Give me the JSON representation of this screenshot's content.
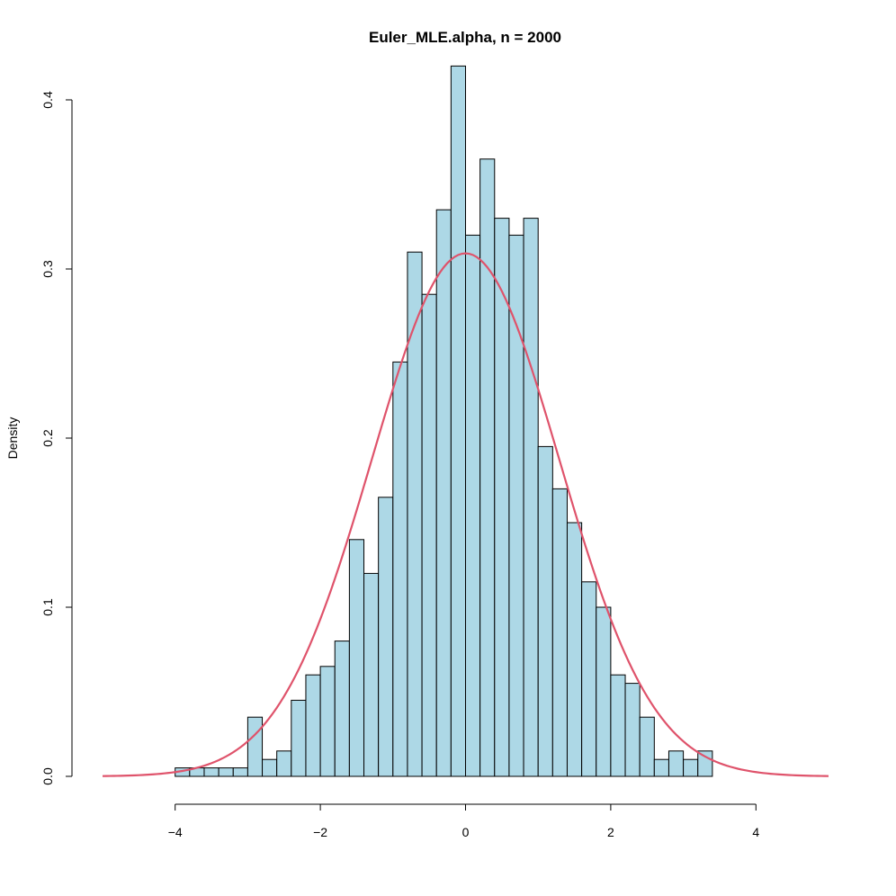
{
  "chart_data": {
    "type": "bar",
    "title": "Euler_MLE.alpha, n = 2000",
    "xlabel": "",
    "ylabel": "Density",
    "xlim": [
      -5,
      5
    ],
    "ylim": [
      0,
      0.4
    ],
    "x_ticks": [
      -4,
      -2,
      0,
      2,
      4
    ],
    "x_tick_labels": [
      "−4",
      "−2",
      "0",
      "2",
      "4"
    ],
    "y_ticks": [
      0.0,
      0.1,
      0.2,
      0.3,
      0.4
    ],
    "y_tick_labels": [
      "0.0",
      "0.1",
      "0.2",
      "0.3",
      "0.4"
    ],
    "grid": false,
    "bar_fill": "#add8e6",
    "bar_stroke": "#000000",
    "curve_color": "#df536b",
    "bin_width": 0.2,
    "bins": [
      {
        "x0": -4.0,
        "x1": -3.8,
        "density": 0.005
      },
      {
        "x0": -3.8,
        "x1": -3.6,
        "density": 0.005
      },
      {
        "x0": -3.6,
        "x1": -3.4,
        "density": 0.005
      },
      {
        "x0": -3.4,
        "x1": -3.2,
        "density": 0.005
      },
      {
        "x0": -3.2,
        "x1": -3.0,
        "density": 0.005
      },
      {
        "x0": -3.0,
        "x1": -2.8,
        "density": 0.035
      },
      {
        "x0": -2.8,
        "x1": -2.6,
        "density": 0.01
      },
      {
        "x0": -2.6,
        "x1": -2.4,
        "density": 0.015
      },
      {
        "x0": -2.4,
        "x1": -2.2,
        "density": 0.045
      },
      {
        "x0": -2.2,
        "x1": -2.0,
        "density": 0.06
      },
      {
        "x0": -2.0,
        "x1": -1.8,
        "density": 0.065
      },
      {
        "x0": -1.8,
        "x1": -1.6,
        "density": 0.08
      },
      {
        "x0": -1.6,
        "x1": -1.4,
        "density": 0.14
      },
      {
        "x0": -1.4,
        "x1": -1.2,
        "density": 0.12
      },
      {
        "x0": -1.2,
        "x1": -1.0,
        "density": 0.165
      },
      {
        "x0": -1.0,
        "x1": -0.8,
        "density": 0.245
      },
      {
        "x0": -0.8,
        "x1": -0.6,
        "density": 0.31
      },
      {
        "x0": -0.6,
        "x1": -0.4,
        "density": 0.285
      },
      {
        "x0": -0.4,
        "x1": -0.2,
        "density": 0.335
      },
      {
        "x0": -0.2,
        "x1": 0.0,
        "density": 0.42
      },
      {
        "x0": 0.0,
        "x1": 0.2,
        "density": 0.32
      },
      {
        "x0": 0.2,
        "x1": 0.4,
        "density": 0.365
      },
      {
        "x0": 0.4,
        "x1": 0.6,
        "density": 0.33
      },
      {
        "x0": 0.6,
        "x1": 0.8,
        "density": 0.32
      },
      {
        "x0": 0.8,
        "x1": 1.0,
        "density": 0.33
      },
      {
        "x0": 1.0,
        "x1": 1.2,
        "density": 0.195
      },
      {
        "x0": 1.2,
        "x1": 1.4,
        "density": 0.17
      },
      {
        "x0": 1.4,
        "x1": 1.6,
        "density": 0.15
      },
      {
        "x0": 1.6,
        "x1": 1.8,
        "density": 0.115
      },
      {
        "x0": 1.8,
        "x1": 2.0,
        "density": 0.1
      },
      {
        "x0": 2.0,
        "x1": 2.2,
        "density": 0.06
      },
      {
        "x0": 2.2,
        "x1": 2.4,
        "density": 0.055
      },
      {
        "x0": 2.4,
        "x1": 2.6,
        "density": 0.035
      },
      {
        "x0": 2.6,
        "x1": 2.8,
        "density": 0.01
      },
      {
        "x0": 2.8,
        "x1": 3.0,
        "density": 0.015
      },
      {
        "x0": 3.0,
        "x1": 3.2,
        "density": 0.01
      },
      {
        "x0": 3.2,
        "x1": 3.4,
        "density": 0.015
      }
    ],
    "curve": {
      "kind": "normal-density",
      "mean": 0.0,
      "sd": 1.29,
      "x_range": [
        -5,
        5
      ]
    }
  }
}
